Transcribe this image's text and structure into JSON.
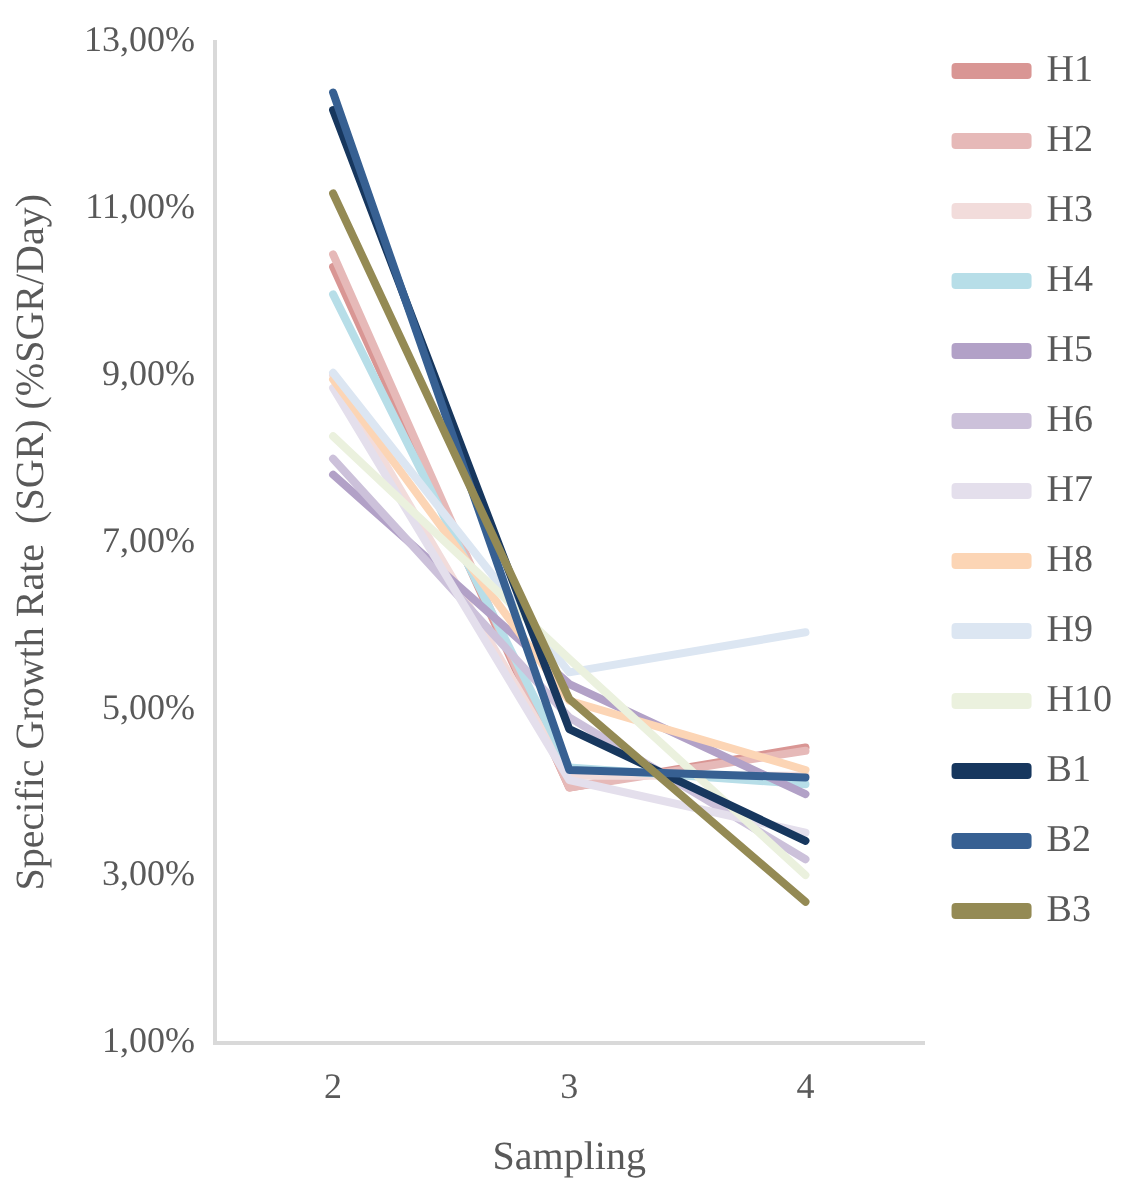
{
  "chart_data": {
    "type": "line",
    "xlabel": "Sampling",
    "ylabel": "Specific Growth Rate  (SGR) (%SGR/Day)",
    "categories": [
      "2",
      "3",
      "4"
    ],
    "ylim": [
      1,
      13
    ],
    "yticks": [
      {
        "value": 1,
        "label": "1,00%"
      },
      {
        "value": 3,
        "label": "3,00%"
      },
      {
        "value": 5,
        "label": "5,00%"
      },
      {
        "value": 7,
        "label": "7,00%"
      },
      {
        "value": 9,
        "label": "9,00%"
      },
      {
        "value": 11,
        "label": "11,00%"
      },
      {
        "value": 13,
        "label": "13,00%"
      }
    ],
    "grid": false,
    "legend": "right",
    "marker": "none",
    "line_style": "solid",
    "series": [
      {
        "name": "H1",
        "color": "#d99694",
        "values": [
          10.3,
          4.06,
          4.54
        ]
      },
      {
        "name": "H2",
        "color": "#e6b9b8",
        "values": [
          10.45,
          4.06,
          4.5
        ]
      },
      {
        "name": "H3",
        "color": "#f2dcdb",
        "values": [
          9.0,
          4.2,
          4.2
        ]
      },
      {
        "name": "H4",
        "color": "#b7dee8",
        "values": [
          9.97,
          4.3,
          4.1
        ]
      },
      {
        "name": "H5",
        "color": "#b2a1c7",
        "values": [
          7.81,
          5.3,
          3.98
        ]
      },
      {
        "name": "H6",
        "color": "#ccc1da",
        "values": [
          8.0,
          4.9,
          3.2
        ]
      },
      {
        "name": "H7",
        "color": "#e4dfec",
        "values": [
          8.85,
          4.15,
          3.52
        ]
      },
      {
        "name": "H8",
        "color": "#fcd5b5",
        "values": [
          8.95,
          5.1,
          4.27
        ]
      },
      {
        "name": "H9",
        "color": "#dce6f2",
        "values": [
          9.03,
          5.44,
          5.92
        ]
      },
      {
        "name": "H10",
        "color": "#ebf1de",
        "values": [
          8.27,
          5.6,
          3.01
        ]
      },
      {
        "name": "B1",
        "color": "#17375e",
        "values": [
          12.18,
          4.76,
          3.42
        ]
      },
      {
        "name": "B2",
        "color": "#376092",
        "values": [
          12.39,
          4.27,
          4.18
        ]
      },
      {
        "name": "B3",
        "color": "#948a54",
        "values": [
          11.18,
          5.12,
          2.69
        ]
      }
    ]
  }
}
